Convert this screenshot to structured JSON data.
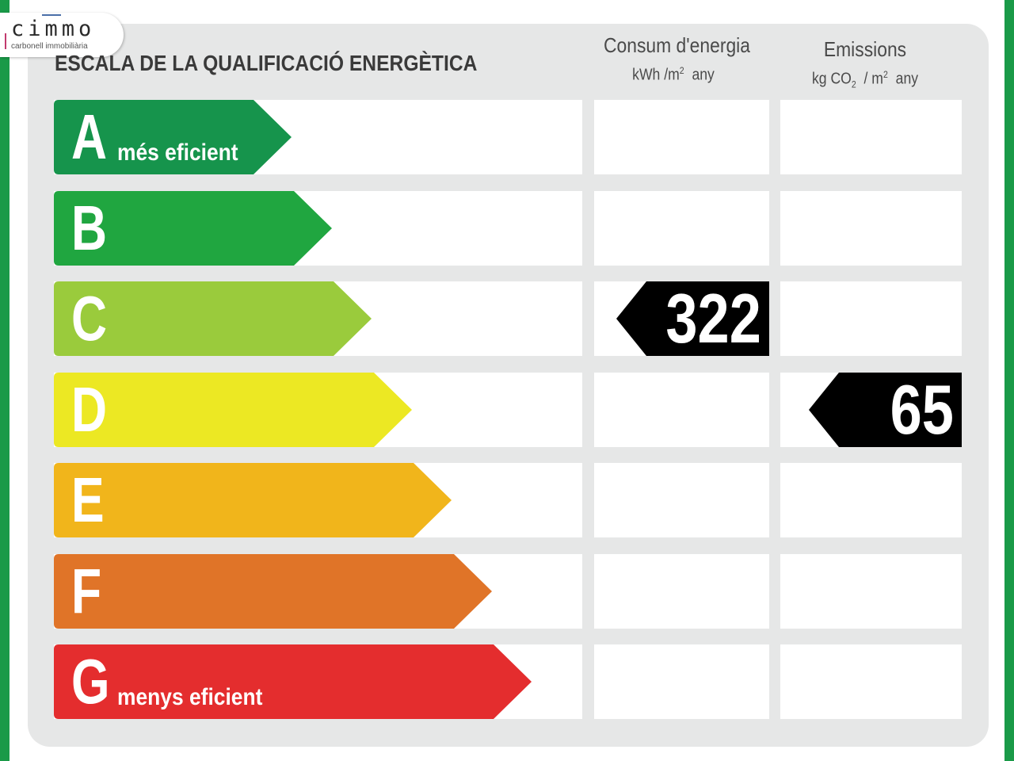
{
  "brand": {
    "name": "cimmo",
    "tagline": "carbonell immobiliària"
  },
  "title": "ESCALA DE LA QUALIFICACIÓ ENERGÈTICA",
  "columns": {
    "consumption": {
      "title": "Consum d'energia",
      "unit_main": "kWh /m",
      "unit_sup": "2",
      "unit_tail": "any"
    },
    "emissions": {
      "title": "Emissions",
      "unit_a": "kg CO",
      "unit_sub": "2",
      "unit_b": "/ m",
      "unit_sup": "2",
      "unit_tail": "any"
    }
  },
  "ratings": [
    {
      "letter": "A",
      "sublabel": "més eficient",
      "color": "#16944c"
    },
    {
      "letter": "B",
      "sublabel": "",
      "color": "#20a640"
    },
    {
      "letter": "C",
      "sublabel": "",
      "color": "#9acb3c"
    },
    {
      "letter": "D",
      "sublabel": "",
      "color": "#ece823"
    },
    {
      "letter": "E",
      "sublabel": "",
      "color": "#f1b51b"
    },
    {
      "letter": "F",
      "sublabel": "",
      "color": "#e07428"
    },
    {
      "letter": "G",
      "sublabel": "menys eficient",
      "color": "#e42d2e"
    }
  ],
  "results": {
    "consumption": {
      "value": "322",
      "rating": "C"
    },
    "emissions": {
      "value": "65",
      "rating": "D"
    }
  },
  "colors": {
    "frame": "#1a9a48",
    "panel": "#e6e7e7",
    "badge": "#000000"
  }
}
